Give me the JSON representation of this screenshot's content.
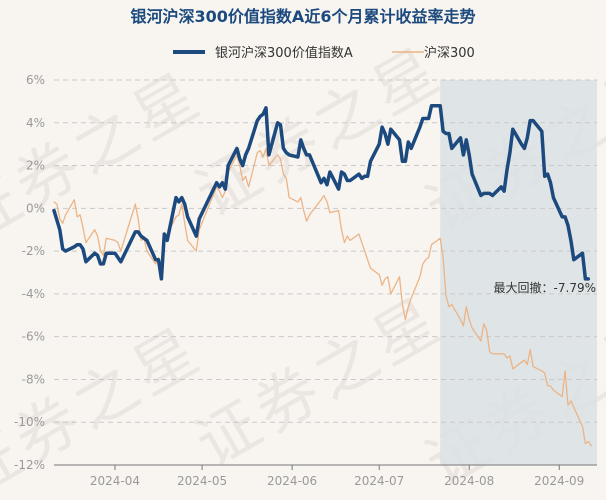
{
  "chart_data": {
    "type": "line",
    "title": "银河沪深300价值指数A近6个月累计收益率走势",
    "ylim": [
      -12,
      6
    ],
    "yticks": [
      -12,
      -10,
      -8,
      -6,
      -4,
      -2,
      0,
      2,
      4,
      6
    ],
    "ytick_labels": [
      "-12%",
      "-10%",
      "-8%",
      "-6%",
      "-4%",
      "-2%",
      "0%",
      "2%",
      "4%",
      "6%"
    ],
    "x_range": [
      "2024-03-11",
      "2024-09-14"
    ],
    "x_ticks": [
      "2024-04-01",
      "2024-05-01",
      "2024-06-01",
      "2024-07-01",
      "2024-08-01",
      "2024-09-01"
    ],
    "x_tick_labels": [
      "2024-04",
      "2024-05",
      "2024-06",
      "2024-07",
      "2024-08",
      "2024-09"
    ],
    "grid": "horizontal",
    "legend_position": "top-center",
    "max_drawdown": {
      "label": "最大回撤：-7.79%",
      "start": "2024-07-22",
      "end": "2024-09-14"
    },
    "watermark": "证券之星",
    "series": [
      {
        "name": "银河沪深300价值指数A",
        "color": "#1c4a7e",
        "points": [
          [
            "2024-03-11",
            -0.1
          ],
          [
            "2024-03-13",
            -1.0
          ],
          [
            "2024-03-14",
            -1.9
          ],
          [
            "2024-03-15",
            -2.0
          ],
          [
            "2024-03-18",
            -1.8
          ],
          [
            "2024-03-19",
            -1.7
          ],
          [
            "2024-03-20",
            -1.7
          ],
          [
            "2024-03-21",
            -1.9
          ],
          [
            "2024-03-22",
            -2.5
          ],
          [
            "2024-03-25",
            -2.1
          ],
          [
            "2024-03-26",
            -2.2
          ],
          [
            "2024-03-27",
            -2.6
          ],
          [
            "2024-03-28",
            -2.6
          ],
          [
            "2024-03-29",
            -2.1
          ],
          [
            "2024-04-01",
            -2.1
          ],
          [
            "2024-04-02",
            -2.3
          ],
          [
            "2024-04-03",
            -2.5
          ],
          [
            "2024-04-08",
            -1.1
          ],
          [
            "2024-04-09",
            -1.1
          ],
          [
            "2024-04-10",
            -1.3
          ],
          [
            "2024-04-11",
            -1.4
          ],
          [
            "2024-04-12",
            -1.5
          ],
          [
            "2024-04-15",
            -2.4
          ],
          [
            "2024-04-16",
            -2.4
          ],
          [
            "2024-04-17",
            -3.3
          ],
          [
            "2024-04-18",
            -1.2
          ],
          [
            "2024-04-19",
            -1.5
          ],
          [
            "2024-04-22",
            0.5
          ],
          [
            "2024-04-23",
            0.3
          ],
          [
            "2024-04-24",
            0.5
          ],
          [
            "2024-04-25",
            0.2
          ],
          [
            "2024-04-26",
            -0.4
          ],
          [
            "2024-04-29",
            -1.3
          ],
          [
            "2024-04-30",
            -0.5
          ],
          [
            "2024-05-06",
            1.2
          ],
          [
            "2024-05-07",
            1.0
          ],
          [
            "2024-05-08",
            1.2
          ],
          [
            "2024-05-09",
            0.9
          ],
          [
            "2024-05-10",
            2.0
          ],
          [
            "2024-05-13",
            2.8
          ],
          [
            "2024-05-14",
            2.3
          ],
          [
            "2024-05-15",
            2.0
          ],
          [
            "2024-05-16",
            2.5
          ],
          [
            "2024-05-17",
            2.8
          ],
          [
            "2024-05-20",
            4.1
          ],
          [
            "2024-05-21",
            4.3
          ],
          [
            "2024-05-22",
            4.4
          ],
          [
            "2024-05-23",
            4.7
          ],
          [
            "2024-05-24",
            2.5
          ],
          [
            "2024-05-27",
            4.0
          ],
          [
            "2024-05-28",
            3.9
          ],
          [
            "2024-05-29",
            2.8
          ],
          [
            "2024-05-30",
            2.6
          ],
          [
            "2024-05-31",
            2.5
          ],
          [
            "2024-06-03",
            2.4
          ],
          [
            "2024-06-04",
            3.2
          ],
          [
            "2024-06-05",
            2.8
          ],
          [
            "2024-06-06",
            2.5
          ],
          [
            "2024-06-07",
            2.5
          ],
          [
            "2024-06-11",
            1.2
          ],
          [
            "2024-06-12",
            1.4
          ],
          [
            "2024-06-13",
            1.1
          ],
          [
            "2024-06-14",
            1.7
          ],
          [
            "2024-06-17",
            0.9
          ],
          [
            "2024-06-18",
            1.7
          ],
          [
            "2024-06-19",
            1.6
          ],
          [
            "2024-06-20",
            1.3
          ],
          [
            "2024-06-21",
            1.3
          ],
          [
            "2024-06-24",
            1.6
          ],
          [
            "2024-06-25",
            1.4
          ],
          [
            "2024-06-26",
            1.5
          ],
          [
            "2024-06-27",
            1.5
          ],
          [
            "2024-06-28",
            2.2
          ],
          [
            "2024-07-01",
            3.0
          ],
          [
            "2024-07-02",
            3.8
          ],
          [
            "2024-07-03",
            3.5
          ],
          [
            "2024-07-04",
            3.0
          ],
          [
            "2024-07-05",
            3.7
          ],
          [
            "2024-07-08",
            3.2
          ],
          [
            "2024-07-09",
            2.2
          ],
          [
            "2024-07-10",
            2.2
          ],
          [
            "2024-07-11",
            3.1
          ],
          [
            "2024-07-12",
            2.8
          ],
          [
            "2024-07-15",
            3.8
          ],
          [
            "2024-07-16",
            4.2
          ],
          [
            "2024-07-17",
            4.2
          ],
          [
            "2024-07-18",
            4.2
          ],
          [
            "2024-07-19",
            4.8
          ],
          [
            "2024-07-22",
            4.8
          ],
          [
            "2024-07-23",
            3.6
          ],
          [
            "2024-07-24",
            3.5
          ],
          [
            "2024-07-25",
            3.5
          ],
          [
            "2024-07-26",
            2.8
          ],
          [
            "2024-07-29",
            3.3
          ],
          [
            "2024-07-30",
            2.5
          ],
          [
            "2024-07-31",
            3.2
          ],
          [
            "2024-08-01",
            2.5
          ],
          [
            "2024-08-02",
            1.6
          ],
          [
            "2024-08-05",
            0.6
          ],
          [
            "2024-08-06",
            0.7
          ],
          [
            "2024-08-07",
            0.7
          ],
          [
            "2024-08-08",
            0.7
          ],
          [
            "2024-08-09",
            0.6
          ],
          [
            "2024-08-12",
            1.0
          ],
          [
            "2024-08-13",
            0.8
          ],
          [
            "2024-08-14",
            1.8
          ],
          [
            "2024-08-15",
            2.6
          ],
          [
            "2024-08-16",
            3.7
          ],
          [
            "2024-08-19",
            3.0
          ],
          [
            "2024-08-20",
            2.8
          ],
          [
            "2024-08-21",
            3.3
          ],
          [
            "2024-08-22",
            4.1
          ],
          [
            "2024-08-23",
            4.1
          ],
          [
            "2024-08-26",
            3.6
          ],
          [
            "2024-08-27",
            1.5
          ],
          [
            "2024-08-28",
            1.6
          ],
          [
            "2024-08-29",
            1.2
          ],
          [
            "2024-08-30",
            0.5
          ],
          [
            "2024-09-02",
            -0.4
          ],
          [
            "2024-09-03",
            -0.4
          ],
          [
            "2024-09-04",
            -0.8
          ],
          [
            "2024-09-05",
            -1.5
          ],
          [
            "2024-09-06",
            -2.4
          ],
          [
            "2024-09-09",
            -2.1
          ],
          [
            "2024-09-10",
            -3.3
          ],
          [
            "2024-09-11",
            -3.3
          ]
        ]
      },
      {
        "name": "沪深300",
        "color": "#ecb486",
        "points": [
          [
            "2024-03-11",
            0.3
          ],
          [
            "2024-03-12",
            0.2
          ],
          [
            "2024-03-13",
            -0.5
          ],
          [
            "2024-03-14",
            -0.7
          ],
          [
            "2024-03-15",
            -0.3
          ],
          [
            "2024-03-18",
            0.4
          ],
          [
            "2024-03-19",
            -0.4
          ],
          [
            "2024-03-20",
            -0.3
          ],
          [
            "2024-03-21",
            -0.9
          ],
          [
            "2024-03-22",
            -1.6
          ],
          [
            "2024-03-25",
            -1.0
          ],
          [
            "2024-03-26",
            -1.3
          ],
          [
            "2024-03-27",
            -2.0
          ],
          [
            "2024-03-28",
            -2.2
          ],
          [
            "2024-03-29",
            -1.4
          ],
          [
            "2024-04-01",
            -1.5
          ],
          [
            "2024-04-02",
            -1.6
          ],
          [
            "2024-04-03",
            -2.0
          ],
          [
            "2024-04-08",
            0.2
          ],
          [
            "2024-04-09",
            -0.5
          ],
          [
            "2024-04-10",
            -1.5
          ],
          [
            "2024-04-11",
            -1.4
          ],
          [
            "2024-04-12",
            -2.0
          ],
          [
            "2024-04-15",
            -2.6
          ],
          [
            "2024-04-16",
            -2.3
          ],
          [
            "2024-04-17",
            -3.1
          ],
          [
            "2024-04-18",
            -1.4
          ],
          [
            "2024-04-19",
            -1.2
          ],
          [
            "2024-04-22",
            -0.4
          ],
          [
            "2024-04-23",
            -0.3
          ],
          [
            "2024-04-24",
            0.2
          ],
          [
            "2024-04-25",
            -0.7
          ],
          [
            "2024-04-26",
            -1.5
          ],
          [
            "2024-04-29",
            -2.0
          ],
          [
            "2024-04-30",
            -1.0
          ],
          [
            "2024-05-06",
            1.0
          ],
          [
            "2024-05-07",
            0.8
          ],
          [
            "2024-05-08",
            0.5
          ],
          [
            "2024-05-09",
            0.8
          ],
          [
            "2024-05-10",
            1.7
          ],
          [
            "2024-05-13",
            2.5
          ],
          [
            "2024-05-14",
            2.0
          ],
          [
            "2024-05-15",
            1.3
          ],
          [
            "2024-05-16",
            1.5
          ],
          [
            "2024-05-17",
            1.0
          ],
          [
            "2024-05-20",
            2.6
          ],
          [
            "2024-05-21",
            2.7
          ],
          [
            "2024-05-22",
            2.4
          ],
          [
            "2024-05-23",
            2.8
          ],
          [
            "2024-05-24",
            2.0
          ],
          [
            "2024-05-27",
            2.5
          ],
          [
            "2024-05-28",
            2.3
          ],
          [
            "2024-05-29",
            1.6
          ],
          [
            "2024-05-30",
            1.4
          ],
          [
            "2024-05-31",
            0.5
          ],
          [
            "2024-06-03",
            0.3
          ],
          [
            "2024-06-04",
            0.5
          ],
          [
            "2024-06-05",
            -0.1
          ],
          [
            "2024-06-06",
            -0.6
          ],
          [
            "2024-06-07",
            -0.3
          ],
          [
            "2024-06-11",
            0.4
          ],
          [
            "2024-06-12",
            0.6
          ],
          [
            "2024-06-13",
            0.3
          ],
          [
            "2024-06-14",
            -0.2
          ],
          [
            "2024-06-17",
            -0.1
          ],
          [
            "2024-06-18",
            -1.0
          ],
          [
            "2024-06-19",
            -1.6
          ],
          [
            "2024-06-20",
            -1.3
          ],
          [
            "2024-06-21",
            -1.5
          ],
          [
            "2024-06-24",
            -1.2
          ],
          [
            "2024-06-25",
            -1.6
          ],
          [
            "2024-06-26",
            -2.0
          ],
          [
            "2024-06-27",
            -2.4
          ],
          [
            "2024-06-28",
            -2.8
          ],
          [
            "2024-07-01",
            -3.1
          ],
          [
            "2024-07-02",
            -3.6
          ],
          [
            "2024-07-03",
            -3.3
          ],
          [
            "2024-07-04",
            -3.2
          ],
          [
            "2024-07-05",
            -4.0
          ],
          [
            "2024-07-08",
            -3.2
          ],
          [
            "2024-07-09",
            -4.5
          ],
          [
            "2024-07-10",
            -5.2
          ],
          [
            "2024-07-11",
            -4.6
          ],
          [
            "2024-07-12",
            -4.2
          ],
          [
            "2024-07-15",
            -3.2
          ],
          [
            "2024-07-16",
            -2.6
          ],
          [
            "2024-07-17",
            -2.4
          ],
          [
            "2024-07-18",
            -2.3
          ],
          [
            "2024-07-19",
            -1.7
          ],
          [
            "2024-07-22",
            -1.4
          ],
          [
            "2024-07-23",
            -2.3
          ],
          [
            "2024-07-24",
            -4.1
          ],
          [
            "2024-07-25",
            -4.6
          ],
          [
            "2024-07-26",
            -4.5
          ],
          [
            "2024-07-29",
            -5.2
          ],
          [
            "2024-07-30",
            -5.5
          ],
          [
            "2024-07-31",
            -4.6
          ],
          [
            "2024-08-01",
            -5.2
          ],
          [
            "2024-08-02",
            -5.6
          ],
          [
            "2024-08-05",
            -6.2
          ],
          [
            "2024-08-06",
            -5.4
          ],
          [
            "2024-08-07",
            -5.7
          ],
          [
            "2024-08-08",
            -6.7
          ],
          [
            "2024-08-09",
            -6.8
          ],
          [
            "2024-08-12",
            -6.8
          ],
          [
            "2024-08-13",
            -6.8
          ],
          [
            "2024-08-14",
            -7.0
          ],
          [
            "2024-08-15",
            -6.9
          ],
          [
            "2024-08-16",
            -7.5
          ],
          [
            "2024-08-19",
            -7.2
          ],
          [
            "2024-08-20",
            -7.1
          ],
          [
            "2024-08-21",
            -7.3
          ],
          [
            "2024-08-22",
            -6.6
          ],
          [
            "2024-08-23",
            -7.4
          ],
          [
            "2024-08-26",
            -7.6
          ],
          [
            "2024-08-27",
            -7.7
          ],
          [
            "2024-08-28",
            -8.3
          ],
          [
            "2024-08-29",
            -8.3
          ],
          [
            "2024-08-30",
            -8.5
          ],
          [
            "2024-09-02",
            -8.8
          ],
          [
            "2024-09-03",
            -7.6
          ],
          [
            "2024-09-04",
            -9.2
          ],
          [
            "2024-09-05",
            -9.0
          ],
          [
            "2024-09-06",
            -9.3
          ],
          [
            "2024-09-09",
            -10.2
          ],
          [
            "2024-09-10",
            -11.0
          ],
          [
            "2024-09-11",
            -10.9
          ],
          [
            "2024-09-12",
            -11.1
          ]
        ]
      }
    ]
  }
}
